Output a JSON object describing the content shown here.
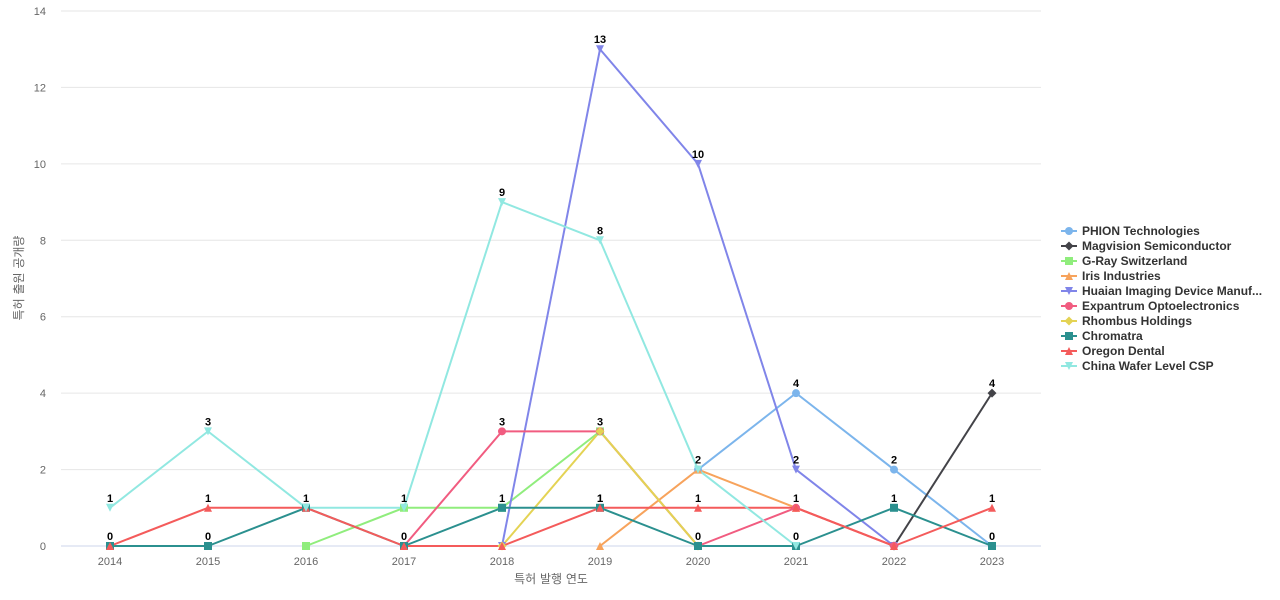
{
  "chart_data": {
    "type": "line",
    "xlabel": "특허 발행 연도",
    "ylabel": "특허 출원 공개량",
    "ylim": [
      0,
      14
    ],
    "yticks": [
      0,
      2,
      4,
      6,
      8,
      10,
      12,
      14
    ],
    "grid": true,
    "legend_position": "right",
    "categories": [
      "2014",
      "2015",
      "2016",
      "2017",
      "2018",
      "2019",
      "2020",
      "2021",
      "2022",
      "2023"
    ],
    "series": [
      {
        "name": "PHION Technologies",
        "color": "#7cb5ec",
        "marker": "circle",
        "values": [
          null,
          null,
          null,
          null,
          null,
          null,
          2,
          4,
          2,
          0
        ],
        "labels": [
          false,
          false,
          false,
          false,
          false,
          false,
          true,
          true,
          true,
          false
        ]
      },
      {
        "name": "Magvision Semiconductor",
        "color": "#434348",
        "marker": "diamond",
        "values": [
          null,
          null,
          null,
          null,
          null,
          null,
          null,
          null,
          0,
          4
        ],
        "labels": [
          false,
          false,
          false,
          false,
          false,
          false,
          false,
          false,
          false,
          true
        ]
      },
      {
        "name": "G-Ray Switzerland",
        "color": "#90ed7d",
        "marker": "square",
        "values": [
          null,
          null,
          0,
          1,
          1,
          3,
          0,
          null,
          null,
          null
        ],
        "labels": [
          false,
          false,
          false,
          false,
          false,
          false,
          false,
          false,
          false,
          false
        ]
      },
      {
        "name": "Iris Industries",
        "color": "#f7a35c",
        "marker": "triangle",
        "values": [
          null,
          null,
          null,
          null,
          null,
          0,
          2,
          1,
          0,
          null
        ],
        "labels": [
          false,
          false,
          false,
          false,
          false,
          false,
          false,
          false,
          false,
          false
        ]
      },
      {
        "name": "Huaian Imaging Device Manuf...",
        "color": "#8085e9",
        "marker": "triangle-down",
        "values": [
          null,
          null,
          null,
          null,
          0,
          13,
          10,
          2,
          0,
          null
        ],
        "labels": [
          false,
          false,
          false,
          false,
          false,
          true,
          true,
          true,
          false,
          false
        ]
      },
      {
        "name": "Expantrum Optoelectronics",
        "color": "#f15c80",
        "marker": "circle",
        "values": [
          null,
          null,
          null,
          0,
          3,
          3,
          0,
          1,
          0,
          null
        ],
        "labels": [
          false,
          false,
          false,
          false,
          true,
          false,
          false,
          false,
          false,
          false
        ]
      },
      {
        "name": "Rhombus Holdings",
        "color": "#e4d354",
        "marker": "diamond",
        "values": [
          null,
          null,
          null,
          null,
          0,
          3,
          0,
          null,
          null,
          null
        ],
        "labels": [
          false,
          false,
          false,
          false,
          false,
          true,
          false,
          false,
          false,
          false
        ]
      },
      {
        "name": "Chromatra",
        "color": "#2b908f",
        "marker": "square",
        "values": [
          0,
          0,
          1,
          0,
          1,
          1,
          0,
          0,
          1,
          0
        ],
        "labels": [
          true,
          true,
          false,
          true,
          true,
          true,
          true,
          true,
          true,
          true
        ]
      },
      {
        "name": "Oregon Dental",
        "color": "#f45b5b",
        "marker": "triangle",
        "values": [
          0,
          1,
          1,
          0,
          0,
          1,
          1,
          1,
          0,
          1
        ],
        "labels": [
          false,
          true,
          false,
          false,
          false,
          true,
          true,
          true,
          false,
          true
        ]
      },
      {
        "name": "China Wafer Level CSP",
        "color": "#91e8e1",
        "marker": "triangle-down",
        "values": [
          1,
          3,
          1,
          1,
          9,
          8,
          2,
          0,
          null,
          null
        ],
        "labels": [
          true,
          true,
          true,
          true,
          true,
          true,
          false,
          false,
          false,
          false
        ]
      }
    ]
  }
}
